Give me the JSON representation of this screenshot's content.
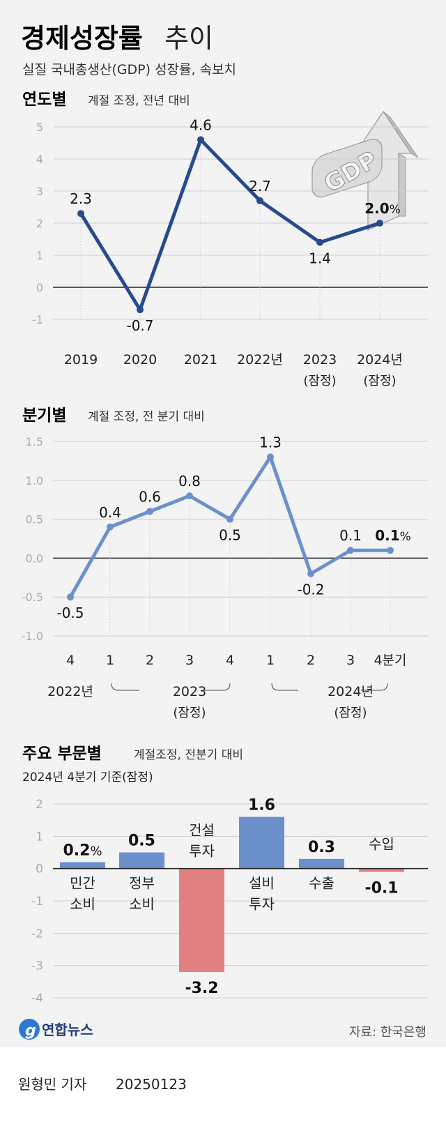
{
  "header": {
    "title_bold": "경제성장률",
    "title_light": "추이",
    "subtitle": "실질 국내총생산(GDP) 성장률, 속보치"
  },
  "colors": {
    "background": "#f3f3f3",
    "annual_line": "#264a8c",
    "quarterly_line": "#6b90cc",
    "positive_bar": "#6b90cc",
    "negative_bar": "#e08080",
    "grid": "#cccccc"
  },
  "gdp_icon": {
    "name": "gdp-arrow-icon",
    "text": "GDP"
  },
  "chart_data": [
    {
      "type": "line",
      "section_title": "연도별",
      "section_note": "계절 조정, 전년 대비",
      "categories": [
        "2019",
        "2020",
        "2021",
        "2022년",
        "2023",
        "2024년"
      ],
      "category_notes": [
        "",
        "",
        "",
        "",
        "(잠정)",
        "(잠정)"
      ],
      "values": [
        2.3,
        -0.7,
        4.6,
        2.7,
        1.4,
        2.0
      ],
      "data_labels": [
        "2.3",
        "-0.7",
        "4.6",
        "2.7",
        "1.4",
        "2.0"
      ],
      "last_label_unit": "%",
      "yticks": [
        "5",
        "4",
        "3",
        "2",
        "1",
        "0",
        "-1"
      ],
      "ylim": [
        -1,
        5
      ],
      "grid": true
    },
    {
      "type": "line",
      "section_title": "분기별",
      "section_note": "계절 조정, 전 분기 대비",
      "categories": [
        "4",
        "1",
        "2",
        "3",
        "4",
        "1",
        "2",
        "3",
        "4분기"
      ],
      "year_labels": [
        {
          "label": "2022년",
          "note": ""
        },
        {
          "label": "2023",
          "note": "(잠정)"
        },
        {
          "label": "2024년",
          "note": "(잠정)"
        }
      ],
      "values": [
        -0.5,
        0.4,
        0.6,
        0.8,
        0.5,
        1.3,
        -0.2,
        0.1,
        0.1
      ],
      "data_labels": [
        "-0.5",
        "0.4",
        "0.6",
        "0.8",
        "0.5",
        "1.3",
        "-0.2",
        "0.1",
        "0.1"
      ],
      "last_label_unit": "%",
      "yticks": [
        "1.5",
        "1.0",
        "0.5",
        "0.0",
        "-0.5",
        "-1.0"
      ],
      "ylim": [
        -1.0,
        1.5
      ],
      "grid": true
    },
    {
      "type": "bar",
      "section_title": "주요 부문별",
      "section_note": "계절조정, 전분기 대비",
      "basis": "2024년 4분기 기준(잠정)",
      "categories": [
        [
          "민간",
          "소비"
        ],
        [
          "정부",
          "소비"
        ],
        [
          "건설",
          "투자"
        ],
        [
          "설비",
          "투자"
        ],
        [
          "수출"
        ],
        [
          "수입"
        ]
      ],
      "values": [
        0.2,
        0.5,
        -3.2,
        1.6,
        0.3,
        -0.1
      ],
      "data_labels": [
        "0.2",
        "0.5",
        "-3.2",
        "1.6",
        "0.3",
        "-0.1"
      ],
      "first_label_unit": "%",
      "yticks": [
        "2",
        "1",
        "0",
        "-1",
        "-2",
        "-3",
        "-4"
      ],
      "ylim": [
        -4,
        2
      ],
      "grid": true
    }
  ],
  "footer": {
    "logo_text": "연합뉴스",
    "source": "자료: 한국은행",
    "byline": "원형민 기자",
    "date": "20250123"
  }
}
